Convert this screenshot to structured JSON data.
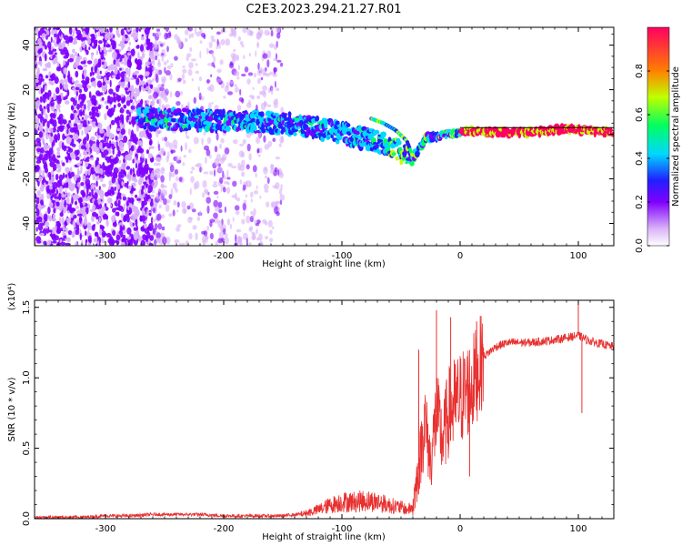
{
  "figure": {
    "title": "C2E3.2023.294.21.27.R01"
  },
  "chart_data": [
    {
      "type": "heatmap",
      "xlabel": "Height of straight line (km)",
      "ylabel": "Frequency (Hz)",
      "xlim": [
        -360,
        130
      ],
      "ylim": [
        -50,
        48
      ],
      "xticks": [
        -300,
        -200,
        -100,
        0,
        100
      ],
      "yticks": [
        -40,
        -20,
        0,
        20,
        40
      ],
      "colorbar": {
        "label": "Normalized spectral amplitude",
        "range": [
          0.0,
          1.0
        ],
        "ticks": [
          0.0,
          0.2,
          0.4,
          0.6,
          0.8
        ],
        "tick_labels": [
          "0.0",
          "0.2",
          "0.4",
          "0.6",
          "0.8"
        ],
        "colormap": [
          "#ffffff",
          "#d8b0f8",
          "#8000ff",
          "#2020ff",
          "#00d8ff",
          "#00ff60",
          "#c0ff00",
          "#ff8000",
          "#ff0060"
        ]
      },
      "features": [
        {
          "name": "noise region",
          "x_range": [
            -360,
            -160
          ],
          "freq_range": [
            -50,
            48
          ],
          "amplitude": 0.15
        },
        {
          "name": "signal track",
          "x": [
            -270,
            -200,
            -150,
            -110,
            -80,
            -60,
            -50,
            -40,
            -30,
            -10,
            0,
            20,
            60,
            80,
            100,
            130
          ],
          "freq": [
            7,
            6,
            5,
            2,
            -2,
            -5,
            -8,
            -11,
            -2,
            0,
            1,
            1,
            1,
            2,
            2,
            1
          ]
        },
        {
          "name": "secondary branch",
          "x": [
            -75,
            -65,
            -55,
            -45,
            -40
          ],
          "freq": [
            7,
            5,
            2,
            -3,
            -10
          ]
        },
        {
          "name": "horizontal line",
          "x_range": [
            0,
            130
          ],
          "freq": 3
        }
      ]
    },
    {
      "type": "line",
      "title": "",
      "xlabel": "Height of straight line (km)",
      "ylabel": "SNR (10 * v/v)",
      "y_multiplier": "(x10⁴)",
      "xlim": [
        -360,
        130
      ],
      "ylim": [
        0.0,
        1.55
      ],
      "xticks": [
        -300,
        -200,
        -100,
        0,
        100
      ],
      "yticks": [
        0.0,
        0.5,
        1.0,
        1.5
      ],
      "ytick_labels": [
        "0.0",
        "0.5",
        "1.0",
        "1.5"
      ],
      "color": "#e83030",
      "series": [
        {
          "x": [
            -360,
            -340,
            -320,
            -300,
            -280,
            -260,
            -240,
            -220,
            -200,
            -180,
            -160,
            -150,
            -140,
            -130,
            -120,
            -110,
            -100,
            -90,
            -80,
            -70,
            -60,
            -50,
            -45,
            -40,
            -35,
            -30,
            -25,
            -20,
            -15,
            -10,
            -5,
            0,
            5,
            10,
            15,
            20,
            30,
            40,
            60,
            80,
            100,
            105,
            110,
            120,
            130
          ],
          "values": [
            0.01,
            0.01,
            0.01,
            0.02,
            0.02,
            0.03,
            0.03,
            0.03,
            0.02,
            0.02,
            0.02,
            0.02,
            0.03,
            0.05,
            0.08,
            0.12,
            0.15,
            0.15,
            0.16,
            0.15,
            0.12,
            0.1,
            0.08,
            0.1,
            0.35,
            0.7,
            0.4,
            0.75,
            0.55,
            0.75,
            0.8,
            0.85,
            0.9,
            0.95,
            1.05,
            1.15,
            1.22,
            1.25,
            1.25,
            1.27,
            1.3,
            1.28,
            1.26,
            1.24,
            1.22
          ]
        }
      ],
      "spikes": [
        {
          "x": -35,
          "value": 1.2
        },
        {
          "x": -20,
          "value": 1.48
        },
        {
          "x": -8,
          "value": 1.43
        },
        {
          "x": 8,
          "value": 0.3
        },
        {
          "x": 14,
          "value": 1.4
        },
        {
          "x": 100,
          "value": 1.55
        },
        {
          "x": 103,
          "value": 0.75
        }
      ]
    }
  ]
}
